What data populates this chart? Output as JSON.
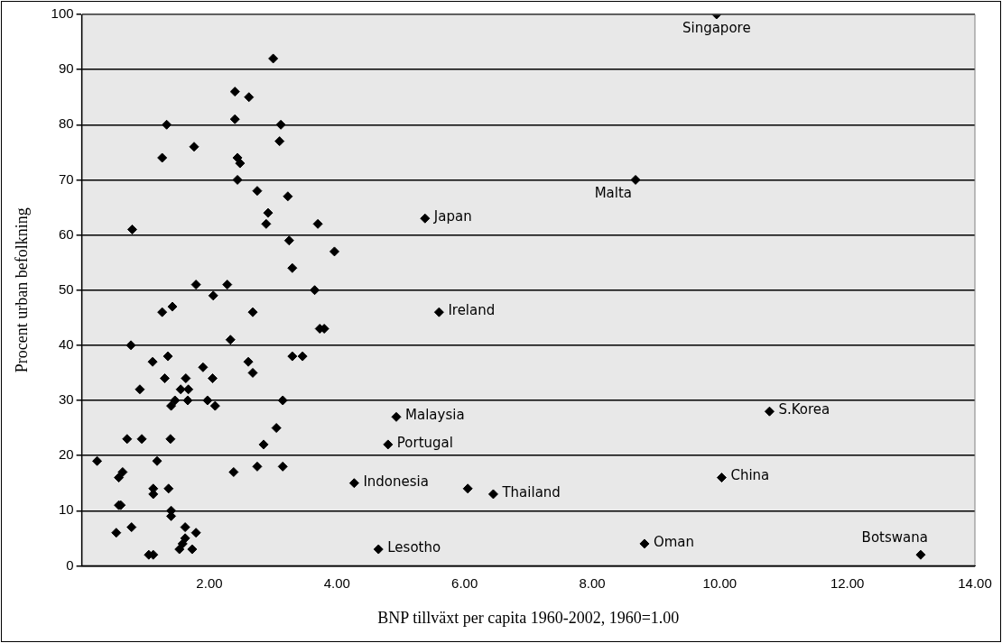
{
  "chart_data": {
    "type": "scatter",
    "xlabel": "BNP tillväxt per capita 1960-2002, 1960=1.00",
    "ylabel": "Procent urban befolkning",
    "xlim": [
      0,
      14
    ],
    "xticks": [
      {
        "value": 2,
        "label": "2.00"
      },
      {
        "value": 4,
        "label": "4.00"
      },
      {
        "value": 6,
        "label": "6.00"
      },
      {
        "value": 8,
        "label": "8.00"
      },
      {
        "value": 10,
        "label": "10.00"
      },
      {
        "value": 12,
        "label": "12.00"
      },
      {
        "value": 14,
        "label": "14.00"
      }
    ],
    "ylim": [
      0,
      100
    ],
    "yticks": [
      0,
      10,
      20,
      30,
      40,
      50,
      60,
      70,
      80,
      90,
      100
    ],
    "grid": "y",
    "marker": "diamond",
    "legend": false,
    "series": [
      {
        "color": "#000000",
        "x": [
          3.0,
          2.4,
          2.62,
          1.33,
          2.4,
          3.12,
          3.1,
          1.76,
          1.26,
          2.44,
          2.48,
          2.44,
          2.75,
          3.23,
          2.92,
          2.89,
          3.7,
          0.79,
          3.25,
          3.96,
          3.3,
          1.79,
          2.28,
          3.65,
          2.06,
          1.42,
          1.26,
          2.68,
          3.73,
          3.8,
          2.33,
          0.77,
          1.35,
          1.11,
          3.3,
          3.46,
          2.61,
          1.9,
          2.68,
          1.3,
          1.63,
          2.05,
          0.91,
          1.55,
          1.67,
          1.46,
          1.66,
          1.97,
          1.4,
          2.09,
          3.15,
          3.05,
          2.85,
          0.71,
          0.94,
          1.39,
          0.24,
          1.18,
          0.64,
          0.58,
          2.38,
          2.75,
          3.15,
          1.12,
          1.12,
          1.36,
          0.58,
          0.61,
          1.4,
          1.4,
          0.54,
          0.78,
          1.62,
          1.79,
          1.62,
          1.58,
          1.53,
          1.73,
          1.05,
          1.12,
          9.95,
          8.68,
          5.38,
          5.6,
          4.93,
          4.8,
          10.78,
          10.03,
          4.27,
          6.05,
          6.45,
          4.65,
          8.82,
          13.15
        ],
        "values": [
          92,
          86,
          85,
          80,
          81,
          80,
          77,
          76,
          74,
          74,
          73,
          70,
          68,
          67,
          64,
          62,
          62,
          61,
          59,
          57,
          54,
          51,
          51,
          50,
          49,
          47,
          46,
          46,
          43,
          43,
          41,
          40,
          38,
          37,
          38,
          38,
          37,
          36,
          35,
          34,
          34,
          34,
          32,
          32,
          32,
          30,
          30,
          30,
          29,
          29,
          30,
          25,
          22,
          23,
          23,
          23,
          19,
          19,
          17,
          16,
          17,
          18,
          18,
          14,
          13,
          14,
          11,
          11,
          10,
          9,
          6,
          7,
          7,
          6,
          5,
          4,
          3,
          3,
          2,
          2,
          100,
          70,
          63,
          46,
          27,
          22,
          28,
          16,
          15,
          14,
          13,
          3,
          4,
          2
        ]
      }
    ],
    "annotations": [
      {
        "text": "Singapore",
        "x": 9.95,
        "y": 100
      },
      {
        "text": "Malta",
        "x": 8.68,
        "y": 70
      },
      {
        "text": "Japan",
        "x": 5.38,
        "y": 63
      },
      {
        "text": "Ireland",
        "x": 5.6,
        "y": 46
      },
      {
        "text": "Malaysia",
        "x": 4.93,
        "y": 27
      },
      {
        "text": "Portugal",
        "x": 4.8,
        "y": 22
      },
      {
        "text": "S.Korea",
        "x": 10.78,
        "y": 28
      },
      {
        "text": "China",
        "x": 10.03,
        "y": 16
      },
      {
        "text": "Indonesia",
        "x": 4.27,
        "y": 15
      },
      {
        "text": "Thailand",
        "x": 6.45,
        "y": 13
      },
      {
        "text": "Lesotho",
        "x": 4.65,
        "y": 3
      },
      {
        "text": "Oman",
        "x": 8.82,
        "y": 4
      },
      {
        "text": "Botswana",
        "x": 13.15,
        "y": 2
      }
    ]
  }
}
